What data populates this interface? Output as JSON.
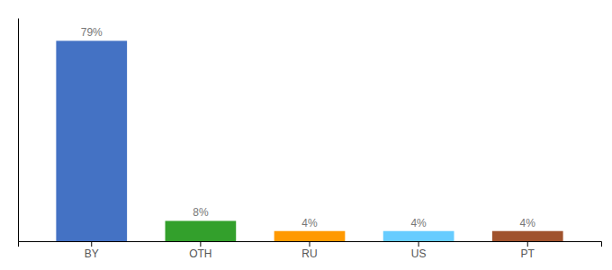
{
  "chart_data": {
    "type": "bar",
    "categories": [
      "BY",
      "OTH",
      "RU",
      "US",
      "PT"
    ],
    "values": [
      79,
      8,
      4,
      4,
      4
    ],
    "value_labels": [
      "79%",
      "8%",
      "4%",
      "4%",
      "4%"
    ],
    "colors": [
      "#4472C4",
      "#33A02C",
      "#FF9900",
      "#66CCFF",
      "#A0522D"
    ],
    "ylim": [
      0,
      88
    ],
    "data_labels": true,
    "tick_labels": "x",
    "grid": false
  }
}
